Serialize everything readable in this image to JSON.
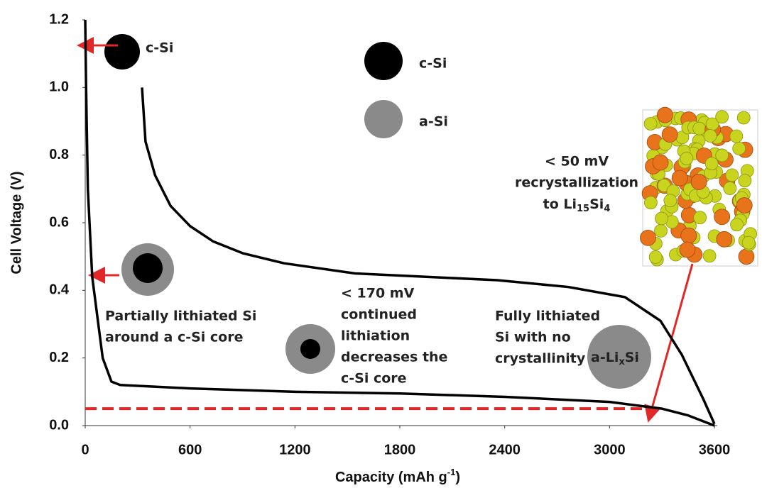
{
  "chart_data": {
    "type": "line",
    "xlabel": [
      "Capacity (mAh g",
      "-1",
      ")"
    ],
    "ylabel": "Cell Voltage (V)",
    "xlim": [
      0,
      3600
    ],
    "ylim": [
      0,
      1.2
    ],
    "xticks": [
      0,
      600,
      1200,
      1800,
      2400,
      3000,
      3600
    ],
    "yticks": [
      {
        "value": 0,
        "label": "0.0"
      },
      0.2,
      0.4,
      0.6,
      0.8,
      {
        "value": 1,
        "label": "1.0"
      },
      1.2
    ],
    "series": [
      {
        "color": "#000000",
        "x": [
          0,
          5,
          15,
          40,
          100,
          150,
          200,
          600,
          1200,
          1800,
          2400,
          3000,
          3300,
          3450,
          3600
        ],
        "values": [
          1.2,
          1.0,
          0.7,
          0.44,
          0.2,
          0.13,
          0.12,
          0.11,
          0.1,
          0.095,
          0.085,
          0.07,
          0.05,
          0.03,
          0
        ]
      },
      {
        "color": "#000000",
        "x": [
          325,
          345,
          400,
          488,
          600,
          731,
          900,
          1138,
          1544,
          1950,
          2357,
          2763,
          3088,
          3291,
          3413,
          3535,
          3600
        ],
        "values": [
          1.0,
          0.84,
          0.74,
          0.65,
          0.59,
          0.545,
          0.51,
          0.48,
          0.45,
          0.44,
          0.43,
          0.41,
          0.38,
          0.31,
          0.21,
          0.08,
          0.005
        ]
      }
    ],
    "reference_line": {
      "y": 0.05,
      "x": [
        0,
        3200
      ],
      "color": "#e02828"
    },
    "annotations": {
      "c_si_marker": "c-Si",
      "legend_c_si": "c-Si",
      "legend_a_si": "a-Si",
      "partial": [
        "Partially lithiated Si",
        "around a c-Si core"
      ],
      "continued": [
        "< 170 mV",
        "continued",
        "lithiation",
        "decreases the",
        "c-Si core"
      ],
      "full": [
        "Fully lithiated",
        "Si with no",
        "crystallinity"
      ],
      "alixsi": [
        "a-Li",
        "x",
        "Si"
      ],
      "recryst": [
        "< 50 mV",
        "recrystallization",
        "to Li",
        "15",
        "Si",
        "4"
      ]
    }
  }
}
